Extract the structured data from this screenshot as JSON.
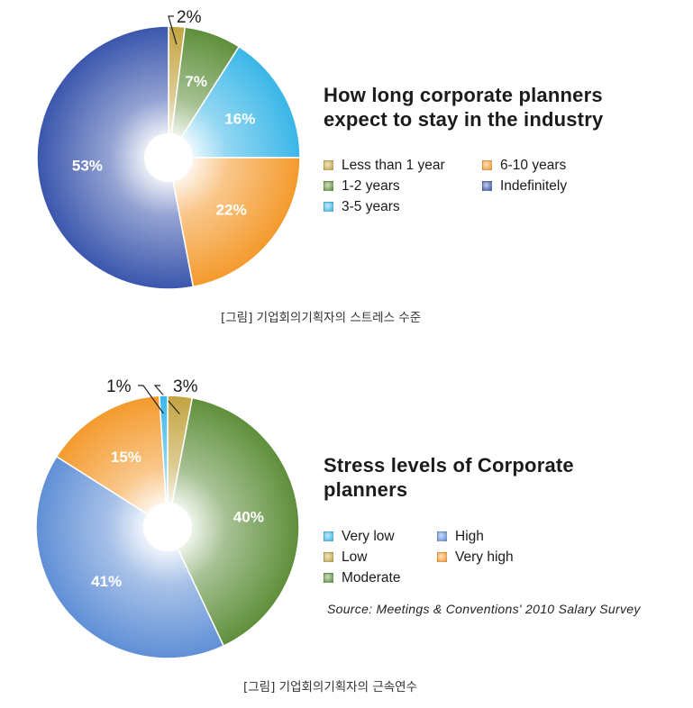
{
  "chart_data": [
    {
      "type": "pie",
      "title": "How long corporate planners expect to stay in the industry",
      "legend_position": "right",
      "series": [
        {
          "labels": [
            "Less than 1 year",
            "1-2 years",
            "3-5 years",
            "6-10 years",
            "Indefinitely"
          ],
          "values": [
            2,
            7,
            16,
            22,
            53
          ],
          "data_labels": [
            "2%",
            "7%",
            "16%",
            "22%",
            "53%"
          ]
        }
      ],
      "slice_order": [
        "Less than 1 year",
        "1-2 years",
        "3-5 years",
        "6-10 years",
        "Indefinitely"
      ],
      "legend_order": [
        "Less than 1 year",
        "1-2 years",
        "3-5 years",
        "6-10 years",
        "Indefinitely"
      ],
      "colors": {
        "Less than 1 year": "#c3a441",
        "1-2 years": "#5e8f3a",
        "3-5 years": "#39b6e8",
        "6-10 years": "#f49a2c",
        "Indefinitely": "#3a56ad"
      },
      "callouts": [
        "Less than 1 year"
      ],
      "caption": "[그림] 기업회의기획자의 스트레스 수준"
    },
    {
      "type": "pie",
      "title": "Stress levels of Corporate planners",
      "legend_position": "right",
      "series": [
        {
          "labels": [
            "Low",
            "Moderate",
            "High",
            "Very high",
            "Very low"
          ],
          "values": [
            3,
            40,
            41,
            15,
            1
          ],
          "data_labels": [
            "3%",
            "40%",
            "41%",
            "15%",
            "1%"
          ]
        }
      ],
      "slice_order": [
        "Low",
        "Moderate",
        "High",
        "Very high",
        "Very low"
      ],
      "legend_order": [
        "Very low",
        "Low",
        "Moderate",
        "High",
        "Very high"
      ],
      "colors": {
        "Very low": "#39b6e8",
        "Low": "#c3a441",
        "Moderate": "#5e8f3a",
        "High": "#5f8fd6",
        "Very high": "#f49a2c"
      },
      "callouts": [
        "Low",
        "Very low"
      ],
      "source": "Source: Meetings & Conventions' 2010 Salary Survey",
      "caption": "[그림] 기업회의기획자의 근속연수"
    }
  ]
}
